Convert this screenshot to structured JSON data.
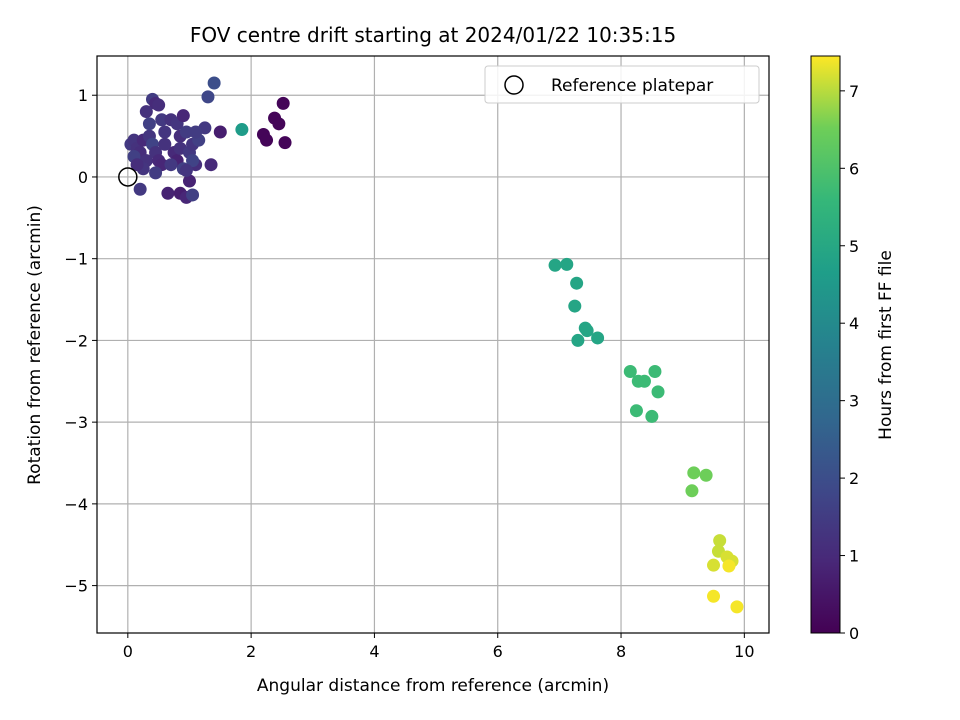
{
  "chart_data": {
    "type": "scatter",
    "title": "FOV centre drift starting at 2024/01/22 10:35:15",
    "xlabel": "Angular distance from reference (arcmin)",
    "ylabel": "Rotation from reference (arcmin)",
    "xlim": [
      -0.5,
      10.4
    ],
    "ylim": [
      -5.58,
      1.48
    ],
    "xticks": [
      0,
      2,
      4,
      6,
      8,
      10
    ],
    "yticks": [
      1,
      0,
      -1,
      -2,
      -3,
      -4,
      -5
    ],
    "grid": true,
    "legend": {
      "position": "top-right",
      "entries": [
        "Reference platepar"
      ]
    },
    "reference_point": {
      "x": 0,
      "y": 0
    },
    "colorbar": {
      "label": "Hours from first FF file",
      "range": [
        0,
        7.45
      ],
      "ticks": [
        0,
        1,
        2,
        3,
        4,
        5,
        6,
        7
      ],
      "colormap": "viridis"
    },
    "points": [
      {
        "x": 0.05,
        "y": 0.4,
        "h": 1.4
      },
      {
        "x": 0.1,
        "y": 0.45,
        "h": 1.3
      },
      {
        "x": 0.15,
        "y": 0.35,
        "h": 1.2
      },
      {
        "x": 0.2,
        "y": 0.3,
        "h": 1.1
      },
      {
        "x": 0.25,
        "y": 0.45,
        "h": 1.0
      },
      {
        "x": 0.3,
        "y": 0.2,
        "h": 1.2
      },
      {
        "x": 0.35,
        "y": 0.5,
        "h": 1.3
      },
      {
        "x": 0.4,
        "y": 0.95,
        "h": 1.5
      },
      {
        "x": 0.45,
        "y": 0.9,
        "h": 1.0
      },
      {
        "x": 0.3,
        "y": 0.8,
        "h": 1.2
      },
      {
        "x": 0.5,
        "y": 0.88,
        "h": 1.1
      },
      {
        "x": 0.55,
        "y": 0.7,
        "h": 1.4
      },
      {
        "x": 0.6,
        "y": 0.55,
        "h": 1.3
      },
      {
        "x": 0.35,
        "y": 0.65,
        "h": 1.6
      },
      {
        "x": 0.4,
        "y": 0.4,
        "h": 1.7
      },
      {
        "x": 0.45,
        "y": 0.3,
        "h": 1.2
      },
      {
        "x": 0.5,
        "y": 0.2,
        "h": 1.0
      },
      {
        "x": 0.55,
        "y": 0.15,
        "h": 0.9
      },
      {
        "x": 0.45,
        "y": 0.05,
        "h": 1.5
      },
      {
        "x": 0.25,
        "y": 0.1,
        "h": 1.3
      },
      {
        "x": 0.1,
        "y": 0.25,
        "h": 1.6
      },
      {
        "x": 0.2,
        "y": -0.15,
        "h": 1.4
      },
      {
        "x": 0.15,
        "y": 0.15,
        "h": 1.1
      },
      {
        "x": 0.65,
        "y": -0.2,
        "h": 0.8
      },
      {
        "x": 0.85,
        "y": -0.2,
        "h": 0.7
      },
      {
        "x": 0.95,
        "y": -0.25,
        "h": 0.9
      },
      {
        "x": 1.05,
        "y": -0.22,
        "h": 1.6
      },
      {
        "x": 1.0,
        "y": -0.05,
        "h": 0.8
      },
      {
        "x": 0.7,
        "y": 0.7,
        "h": 1.2
      },
      {
        "x": 0.8,
        "y": 0.65,
        "h": 1.3
      },
      {
        "x": 0.85,
        "y": 0.5,
        "h": 1.1
      },
      {
        "x": 0.9,
        "y": 0.75,
        "h": 0.9
      },
      {
        "x": 0.95,
        "y": 0.55,
        "h": 1.5
      },
      {
        "x": 0.75,
        "y": 0.3,
        "h": 1.0
      },
      {
        "x": 0.8,
        "y": 0.2,
        "h": 0.8
      },
      {
        "x": 0.85,
        "y": 0.35,
        "h": 1.2
      },
      {
        "x": 0.9,
        "y": 0.1,
        "h": 1.6
      },
      {
        "x": 1.0,
        "y": 0.3,
        "h": 1.4
      },
      {
        "x": 1.05,
        "y": 0.4,
        "h": 1.3
      },
      {
        "x": 1.1,
        "y": 0.15,
        "h": 1.1
      },
      {
        "x": 1.15,
        "y": 0.45,
        "h": 1.6
      },
      {
        "x": 1.25,
        "y": 0.6,
        "h": 1.4
      },
      {
        "x": 1.3,
        "y": 0.98,
        "h": 1.8
      },
      {
        "x": 1.4,
        "y": 1.15,
        "h": 2.0
      },
      {
        "x": 1.35,
        "y": 0.15,
        "h": 1.0
      },
      {
        "x": 1.5,
        "y": 0.55,
        "h": 0.7
      },
      {
        "x": 1.1,
        "y": 0.55,
        "h": 1.5
      },
      {
        "x": 1.05,
        "y": 0.2,
        "h": 1.7
      },
      {
        "x": 0.95,
        "y": 0.08,
        "h": 1.3
      },
      {
        "x": 0.6,
        "y": 0.4,
        "h": 1.2
      },
      {
        "x": 0.7,
        "y": 0.15,
        "h": 1.4
      },
      {
        "x": 1.85,
        "y": 0.58,
        "h": 4.6
      },
      {
        "x": 2.2,
        "y": 0.52,
        "h": 0.1
      },
      {
        "x": 2.25,
        "y": 0.45,
        "h": 0.1
      },
      {
        "x": 2.38,
        "y": 0.72,
        "h": 0.1
      },
      {
        "x": 2.45,
        "y": 0.65,
        "h": 0.1
      },
      {
        "x": 2.52,
        "y": 0.9,
        "h": 0.1
      },
      {
        "x": 2.55,
        "y": 0.42,
        "h": 0.1
      },
      {
        "x": 6.93,
        "y": -1.08,
        "h": 4.9
      },
      {
        "x": 7.12,
        "y": -1.07,
        "h": 4.9
      },
      {
        "x": 7.28,
        "y": -1.3,
        "h": 4.9
      },
      {
        "x": 7.25,
        "y": -1.58,
        "h": 4.9
      },
      {
        "x": 7.42,
        "y": -1.85,
        "h": 4.9
      },
      {
        "x": 7.45,
        "y": -1.88,
        "h": 4.9
      },
      {
        "x": 7.3,
        "y": -2.0,
        "h": 4.9
      },
      {
        "x": 7.62,
        "y": -1.97,
        "h": 4.9
      },
      {
        "x": 8.15,
        "y": -2.38,
        "h": 5.7
      },
      {
        "x": 8.55,
        "y": -2.38,
        "h": 5.7
      },
      {
        "x": 8.28,
        "y": -2.5,
        "h": 5.7
      },
      {
        "x": 8.38,
        "y": -2.5,
        "h": 5.7
      },
      {
        "x": 8.6,
        "y": -2.63,
        "h": 5.7
      },
      {
        "x": 8.25,
        "y": -2.86,
        "h": 5.7
      },
      {
        "x": 8.5,
        "y": -2.93,
        "h": 5.7
      },
      {
        "x": 9.18,
        "y": -3.62,
        "h": 6.5
      },
      {
        "x": 9.38,
        "y": -3.65,
        "h": 6.5
      },
      {
        "x": 9.15,
        "y": -3.84,
        "h": 6.5
      },
      {
        "x": 9.6,
        "y": -4.45,
        "h": 7.1
      },
      {
        "x": 9.58,
        "y": -4.58,
        "h": 7.1
      },
      {
        "x": 9.72,
        "y": -4.65,
        "h": 7.2
      },
      {
        "x": 9.8,
        "y": -4.7,
        "h": 7.2
      },
      {
        "x": 9.5,
        "y": -4.75,
        "h": 7.2
      },
      {
        "x": 9.75,
        "y": -4.76,
        "h": 7.4
      },
      {
        "x": 9.5,
        "y": -5.13,
        "h": 7.4
      },
      {
        "x": 9.88,
        "y": -5.26,
        "h": 7.4
      }
    ]
  }
}
